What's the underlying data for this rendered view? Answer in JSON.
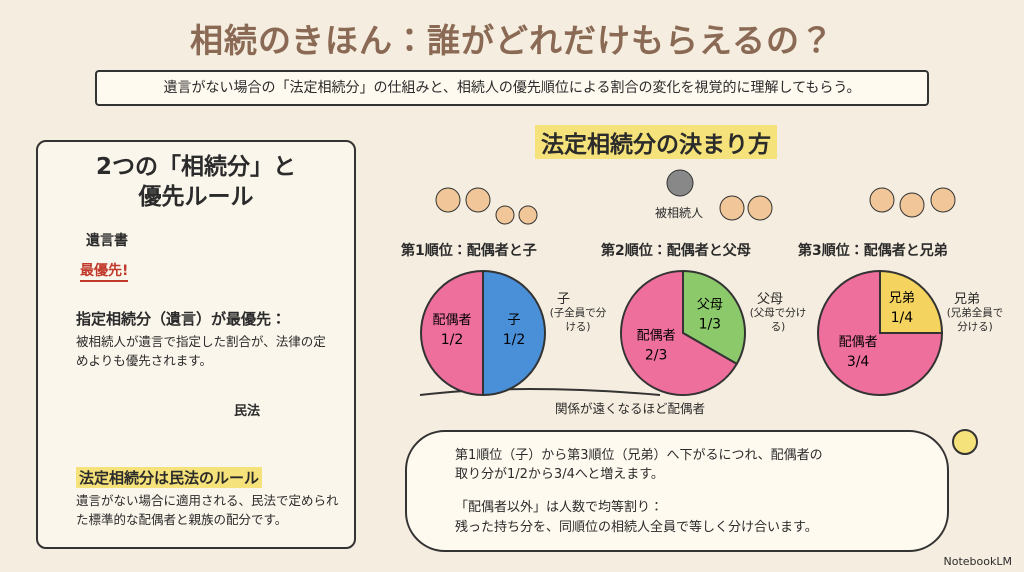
{
  "header": {
    "title": "相続のきほん：誰がどれだけもらえるの？",
    "subtitle": "遺言がない場合の「法定相続分」の仕組みと、相続人の優先順位による割合の変化を視覚的に理解してもらう。"
  },
  "left_panel": {
    "title_lines": [
      "2つの「相続分」と",
      "優先ルール"
    ],
    "will_doc": "遺言書",
    "will_tag": "最優先!",
    "section1": {
      "heading": "指定相続分（遺言）が最優先：",
      "body": "被相続人が遺言で指定した割合が、法律の定めよりも優先されます。"
    },
    "book": "民法",
    "section2": {
      "heading": "法定相続分は民法のルール",
      "body": "遺言がない場合に適用される、民法で定められた標準的な配偶者と親族の配分です。"
    }
  },
  "right_panel": {
    "title": "法定相続分の決まり方",
    "decedent": "被相続人",
    "pies": [
      {
        "heading": "第1順位：配偶者と子",
        "note": "(子全員で分ける)",
        "slices": [
          {
            "name": "子",
            "label": "1/2",
            "value": 0.5,
            "color": "#4a90d9"
          },
          {
            "name": "配偶者",
            "label": "1/2",
            "value": 0.5,
            "color": "#ef6f9c"
          }
        ]
      },
      {
        "heading": "第2順位：配偶者と父母",
        "note": "(父母で分ける)",
        "slices": [
          {
            "name": "父母",
            "label": "1/3",
            "value": 0.333,
            "color": "#8bc96a"
          },
          {
            "name": "配偶者",
            "label": "2/3",
            "value": 0.667,
            "color": "#ef6f9c"
          }
        ]
      },
      {
        "heading": "第3順位：配偶者と兄弟",
        "note": "(兄弟全員で分ける)",
        "slices": [
          {
            "name": "兄弟",
            "label": "1/4",
            "value": 0.25,
            "color": "#f4d35e"
          },
          {
            "name": "配偶者",
            "label": "3/4",
            "value": 0.75,
            "color": "#ef6f9c"
          }
        ]
      }
    ],
    "caption": "関係が遠くなるほど配偶者",
    "bubble": {
      "point1": "第1順位（子）から第3順位（兄弟）へ下がるにつれ、配偶者の取り分が1/2から3/4へと増えます。",
      "point2_heading": "「配偶者以外」は人数で均等割り：",
      "point2_body": "残った持ち分を、同順位の相続人全員で等しく分け合います。"
    }
  },
  "footer": {
    "brand": "NotebookLM"
  }
}
